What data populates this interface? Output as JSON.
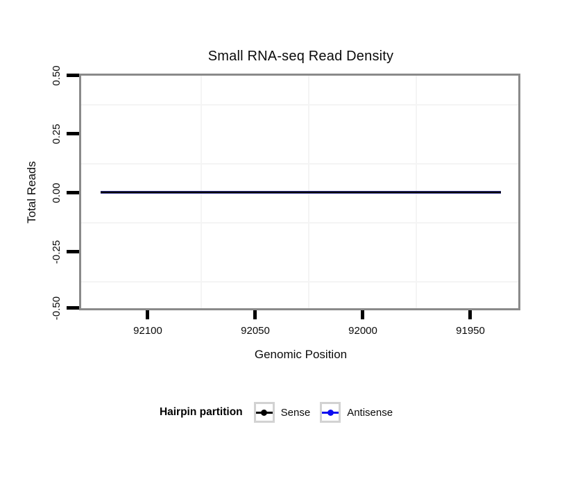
{
  "title": "Small RNA-seq Read Density",
  "axes": {
    "x": {
      "label": "Genomic Position",
      "tick_labels": [
        "92100",
        "92050",
        "92000",
        "91950"
      ],
      "reversed": true
    },
    "y": {
      "label": "Total Reads",
      "tick_labels": [
        "0.50",
        "0.25",
        "0.00",
        "-0.25",
        "-0.50"
      ]
    }
  },
  "legend": {
    "title": "Hairpin partition",
    "items": [
      {
        "label": "Sense",
        "color": "#000000"
      },
      {
        "label": "Antisense",
        "color": "#0d0df0"
      }
    ]
  },
  "colors": {
    "panel_border": "#8a8a8a",
    "tick_marks": "#000000",
    "gridlines": "#f4f4f4",
    "zero_line_core": "#000000",
    "zero_line_fringe": "#34348c",
    "legend_key_border": "#d2d2d2"
  },
  "chart_data": {
    "type": "line",
    "title": "Small RNA-seq Read Density",
    "xlabel": "Genomic Position",
    "ylabel": "Total Reads",
    "x_ticks": [
      92100,
      92050,
      92000,
      91950
    ],
    "x_axis_reversed": true,
    "x_range_displayed": [
      92122,
      91936
    ],
    "ylim": [
      -0.5,
      0.5
    ],
    "y_ticks": [
      0.5,
      0.25,
      0.0,
      -0.25,
      -0.5
    ],
    "grid": "faint minor gridlines midway between ticks; grid on",
    "legend_position": "bottom",
    "legend_title": "Hairpin partition",
    "series": [
      {
        "name": "Sense",
        "color": "#000000",
        "x": [
          92122,
          91936
        ],
        "y": [
          0,
          0
        ]
      },
      {
        "name": "Antisense",
        "color": "#0d0df0",
        "x": [
          92122,
          91936
        ],
        "y": [
          0,
          0
        ]
      }
    ]
  }
}
